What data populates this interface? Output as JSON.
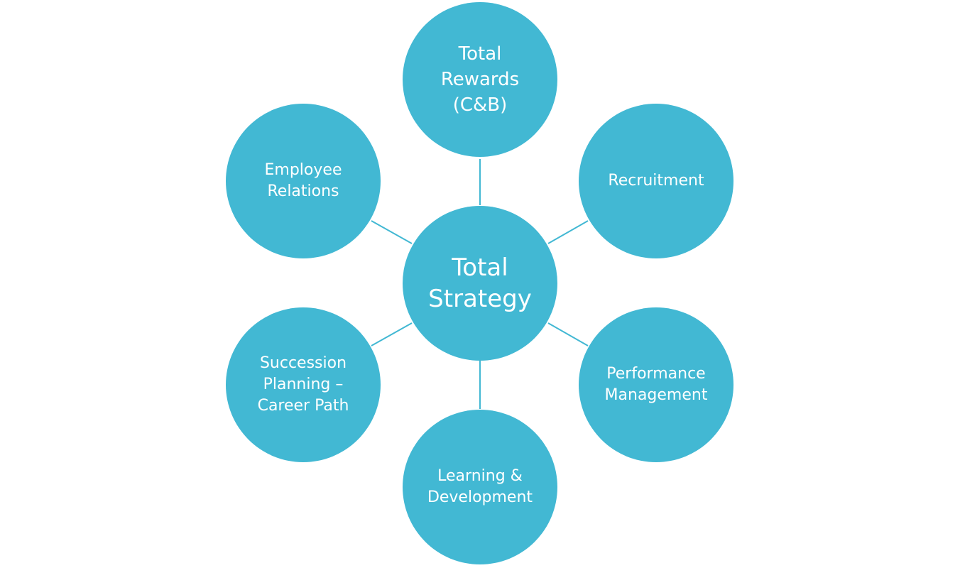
{
  "diagram": {
    "colors": {
      "node_fill": "#42B8D3",
      "connector": "#42B8D3",
      "text": "#FFFFFF",
      "background": "#FFFFFF"
    },
    "center": {
      "label": "Total\nStrategy"
    },
    "nodes": [
      {
        "id": "total-rewards",
        "label": "Total\nRewards\n(C&B)"
      },
      {
        "id": "recruitment",
        "label": "Recruitment"
      },
      {
        "id": "performance-management",
        "label": "Performance\nManagement"
      },
      {
        "id": "learning-development",
        "label": "Learning &\nDevelopment"
      },
      {
        "id": "succession-planning",
        "label": "Succession\nPlanning –\nCareer Path"
      },
      {
        "id": "employee-relations",
        "label": "Employee\nRelations"
      }
    ]
  }
}
